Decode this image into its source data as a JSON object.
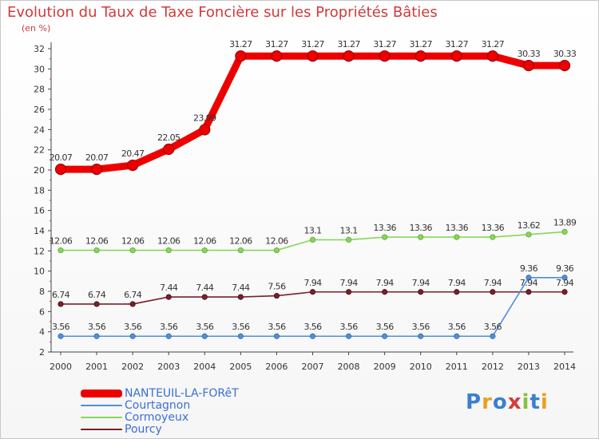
{
  "chart_data": {
    "type": "line",
    "title": "Evolution du Taux de Taxe Foncière sur les Propriétés Bâties",
    "subtitle": "(en %)",
    "xlabel": "",
    "ylabel": "",
    "categories": [
      "2000",
      "2001",
      "2002",
      "2003",
      "2004",
      "2005",
      "2006",
      "2007",
      "2008",
      "2009",
      "2010",
      "2011",
      "2012",
      "2013",
      "2014"
    ],
    "ylim": [
      2,
      32
    ],
    "yticks": [
      2,
      4,
      6,
      8,
      10,
      12,
      14,
      16,
      18,
      20,
      22,
      24,
      26,
      28,
      30,
      32
    ],
    "grid": false,
    "legend_position": "bottom-left",
    "series": [
      {
        "name": "NANTEUIL-LA-FORêT",
        "color": "#ee0000",
        "values": [
          20.07,
          20.07,
          20.47,
          22.05,
          23.99,
          31.27,
          31.27,
          31.27,
          31.27,
          31.27,
          31.27,
          31.27,
          31.27,
          30.33,
          30.33
        ],
        "labels": [
          "20.07",
          "20.07",
          "20.47",
          "22.05",
          "23.99",
          "31.27",
          "31.27",
          "31.27",
          "31.27",
          "31.27",
          "31.27",
          "31.27",
          "31.27",
          "30.33",
          "30.33"
        ]
      },
      {
        "name": "Courtagnon",
        "color": "#4f8fd8",
        "values": [
          3.56,
          3.56,
          3.56,
          3.56,
          3.56,
          3.56,
          3.56,
          3.56,
          3.56,
          3.56,
          3.56,
          3.56,
          3.56,
          9.36,
          9.36
        ],
        "labels": [
          "3.56",
          "3.56",
          "3.56",
          "3.56",
          "3.56",
          "3.56",
          "3.56",
          "3.56",
          "3.56",
          "3.56",
          "3.56",
          "3.56",
          "3.56",
          "9.36",
          "9.36"
        ]
      },
      {
        "name": "Cormoyeux",
        "color": "#88d65a",
        "values": [
          12.06,
          12.06,
          12.06,
          12.06,
          12.06,
          12.06,
          12.06,
          13.1,
          13.1,
          13.36,
          13.36,
          13.36,
          13.36,
          13.62,
          13.89
        ],
        "labels": [
          "12.06",
          "12.06",
          "12.06",
          "12.06",
          "12.06",
          "12.06",
          "12.06",
          "13.1",
          "13.1",
          "13.36",
          "13.36",
          "13.36",
          "13.36",
          "13.62",
          "13.89"
        ]
      },
      {
        "name": "Pourcy",
        "color": "#7a1f2a",
        "values": [
          6.74,
          6.74,
          6.74,
          7.44,
          7.44,
          7.44,
          7.56,
          7.94,
          7.94,
          7.94,
          7.94,
          7.94,
          7.94,
          7.94,
          7.94
        ],
        "labels": [
          "6.74",
          "6.74",
          "6.74",
          "7.44",
          "7.44",
          "7.44",
          "7.56",
          "7.94",
          "7.94",
          "7.94",
          "7.94",
          "7.94",
          "7.94",
          "7.94",
          "7.94"
        ]
      }
    ]
  },
  "logo": {
    "text": "Proxiti"
  }
}
